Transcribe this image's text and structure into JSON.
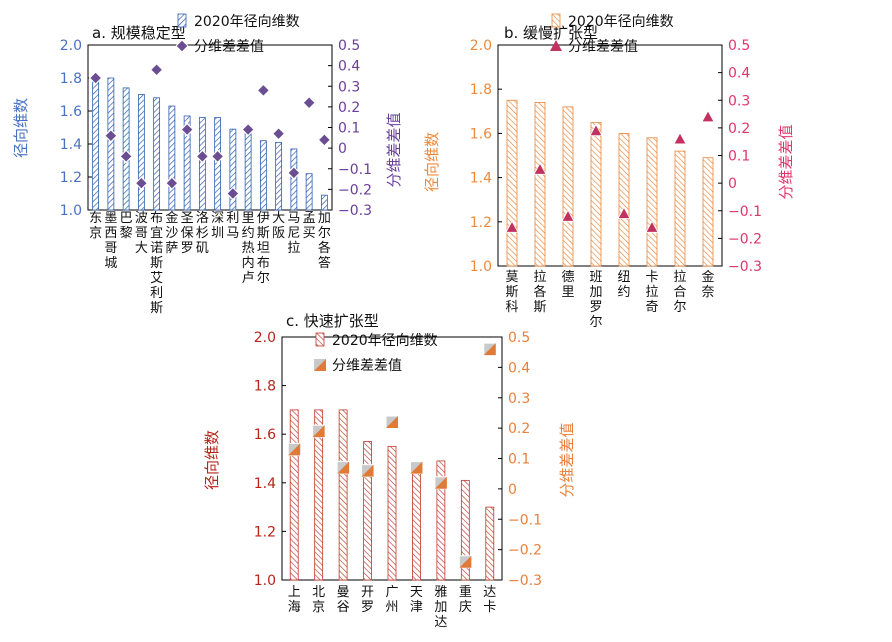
{
  "chart_data": [
    {
      "id": "a",
      "type": "bar",
      "title": "a. 规模稳定型",
      "ylabel_left": "径向维数",
      "ylabel_right": "分维差差值",
      "ylim_left": [
        1.0,
        2.0
      ],
      "ylim_right": [
        -0.3,
        0.5
      ],
      "yticks_left": [
        "1.0",
        "1.2",
        "1.4",
        "1.6",
        "1.8",
        "2.0"
      ],
      "yticks_right": [
        "−0.3",
        "−0.2",
        "−0.1",
        "0",
        "0.1",
        "0.2",
        "0.3",
        "0.4",
        "0.5"
      ],
      "categories": [
        "东京",
        "墨西哥城",
        "巴黎",
        "波哥大",
        "布宜诺斯艾利斯",
        "金沙萨",
        "圣保罗",
        "洛杉矶",
        "深圳",
        "利马",
        "里约热内卢",
        "伊斯坦布尔",
        "大阪",
        "马尼拉",
        "孟买",
        "加尔各答"
      ],
      "series": [
        {
          "name": "2020年径向维数",
          "values": [
            1.79,
            1.8,
            1.74,
            1.7,
            1.68,
            1.63,
            1.57,
            1.56,
            1.56,
            1.49,
            1.49,
            1.42,
            1.41,
            1.37,
            1.22,
            1.09
          ]
        },
        {
          "name": "分维差差值",
          "values": [
            0.34,
            0.06,
            -0.04,
            -0.17,
            0.38,
            -0.17,
            0.09,
            -0.04,
            -0.04,
            -0.22,
            0.09,
            0.28,
            0.07,
            -0.12,
            0.22,
            0.04
          ]
        }
      ],
      "legend": "top-center"
    },
    {
      "id": "b",
      "type": "bar",
      "title": "b. 缓慢扩张型",
      "ylabel_left": "径向维数",
      "ylabel_right": "分维差差值",
      "ylim_left": [
        1.0,
        2.0
      ],
      "ylim_right": [
        -0.3,
        0.5
      ],
      "yticks_left": [
        "1.0",
        "1.2",
        "1.4",
        "1.6",
        "1.8",
        "2.0"
      ],
      "yticks_right": [
        "−0.3",
        "−0.2",
        "−0.1",
        "0",
        "0.1",
        "0.2",
        "0.3",
        "0.4",
        "0.5"
      ],
      "categories": [
        "莫斯科",
        "拉各斯",
        "德里",
        "班加罗尔",
        "纽约",
        "卡拉奇",
        "拉合尔",
        "金奈"
      ],
      "series": [
        {
          "name": "2020年径向维数",
          "values": [
            1.75,
            1.74,
            1.72,
            1.65,
            1.6,
            1.58,
            1.52,
            1.49
          ]
        },
        {
          "name": "分维差差值",
          "values": [
            -0.16,
            0.05,
            -0.12,
            0.19,
            -0.11,
            -0.16,
            0.16,
            0.24
          ]
        }
      ],
      "legend": "top-center"
    },
    {
      "id": "c",
      "type": "bar",
      "title": "c. 快速扩张型",
      "ylabel_left": "径向维数",
      "ylabel_right": "分维差差值",
      "ylim_left": [
        1.0,
        2.0
      ],
      "ylim_right": [
        -0.3,
        0.5
      ],
      "yticks_left": [
        "1.0",
        "1.2",
        "1.4",
        "1.6",
        "1.8",
        "2.0"
      ],
      "yticks_right": [
        "−0.3",
        "−0.2",
        "−0.1",
        "0",
        "0.1",
        "0.2",
        "0.3",
        "0.4",
        "0.5"
      ],
      "categories": [
        "上海",
        "北京",
        "曼谷",
        "开罗",
        "广州",
        "天津",
        "雅加达",
        "重庆",
        "达卡"
      ],
      "series": [
        {
          "name": "2020年径向维数",
          "values": [
            1.7,
            1.7,
            1.7,
            1.57,
            1.55,
            1.48,
            1.49,
            1.41,
            1.3
          ]
        },
        {
          "name": "分维差差值",
          "values": [
            0.13,
            0.19,
            0.07,
            0.06,
            0.22,
            0.07,
            0.02,
            -0.24,
            0.46
          ]
        }
      ],
      "legend": "top-center"
    }
  ],
  "colors": {
    "a_bar": "#2f5fb3",
    "a_axis_left": "#4a72c4",
    "a_marker": "#6b4e92",
    "a_axis_right": "#6a3f9a",
    "b_bar": "#e8853a",
    "b_axis_left": "#ef8a3c",
    "b_marker": "#c23260",
    "b_axis_right": "#e0356a",
    "c_bar": "#c0392b",
    "c_axis_left": "#b5261c",
    "c_marker": "#e07a36",
    "c_axis_right": "#e8803b"
  }
}
